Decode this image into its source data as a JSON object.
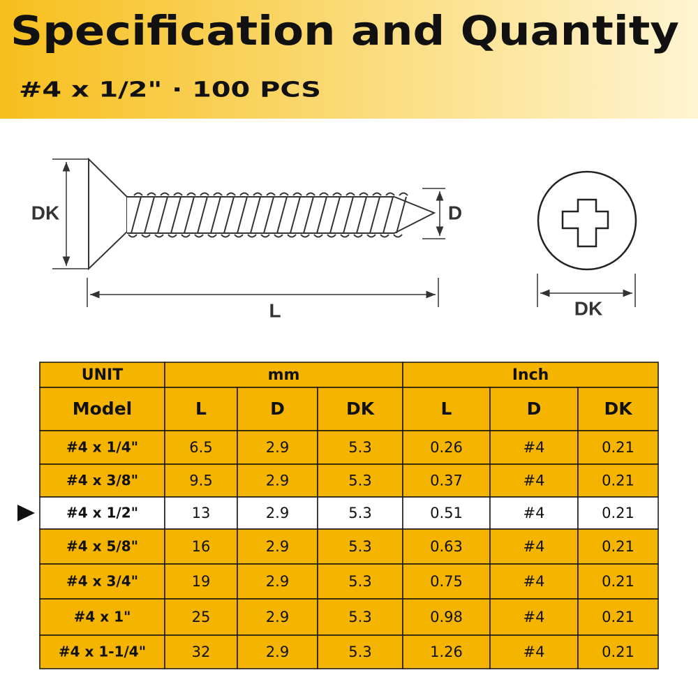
{
  "header": {
    "title": "Specification and Quantity",
    "subtitle": "#4 x 1/2\" · 100 PCS"
  },
  "diagram": {
    "side_dk": "DK",
    "side_d": "D",
    "side_l": "L",
    "head_dk": "DK"
  },
  "table": {
    "unit_row": [
      "UNIT",
      "mm",
      "Inch"
    ],
    "column_row": [
      "Model",
      "L",
      "D",
      "DK",
      "L",
      "D",
      "DK"
    ],
    "highlight_row": 2,
    "rows": [
      [
        "#4 x 1/4\"",
        "6.5",
        "2.9",
        "5.3",
        "0.26",
        "#4",
        "0.21"
      ],
      [
        "#4 x 3/8\"",
        "9.5",
        "2.9",
        "5.3",
        "0.37",
        "#4",
        "0.21"
      ],
      [
        "#4 x 1/2\"",
        "13",
        "2.9",
        "5.3",
        "0.51",
        "#4",
        "0.21"
      ],
      [
        "#4 x 5/8\"",
        "16",
        "2.9",
        "5.3",
        "0.63",
        "#4",
        "0.21"
      ],
      [
        "#4 x 3/4\"",
        "19",
        "2.9",
        "5.3",
        "0.75",
        "#4",
        "0.21"
      ],
      [
        "#4 x 1\"",
        "25",
        "2.9",
        "5.3",
        "0.98",
        "#4",
        "0.21"
      ],
      [
        "#4 x 1-1/4\"",
        "32",
        "2.9",
        "5.3",
        "1.26",
        "#4",
        "0.21"
      ]
    ]
  }
}
